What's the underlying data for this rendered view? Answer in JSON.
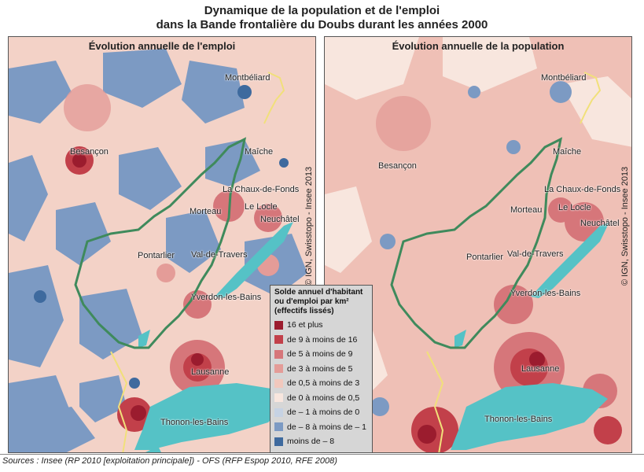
{
  "title_line1": "Dynamique de la population et de l'emploi",
  "title_line2": "dans la Bande frontalière du Doubs durant les années 2000",
  "maps": [
    {
      "title": "Évolution annuelle de l'emploi"
    },
    {
      "title": "Évolution annuelle de la population"
    }
  ],
  "cities": {
    "montbeliard": "Montbéliard",
    "besancon": "Besançon",
    "maiche": "Maîche",
    "chaux_de_fonds": "La Chaux-de-Fonds",
    "le_locle": "Le Locle",
    "morteau": "Morteau",
    "neuchatel": "Neuchâtel",
    "pontarlier": "Pontarlier",
    "val_de_travers": "Val-de-Travers",
    "yverdon": "Yverdon-les-Bains",
    "lausanne": "Lausanne",
    "thonon": "Thonon-les-Bains"
  },
  "credit": "© IGN, Swisstopo - Insee 2013",
  "legend": {
    "title": "Solde annuel d'habitant ou d'emploi par km² (effectifs lissés)",
    "classes": [
      {
        "label": "16 et plus",
        "color": "#9b1c2e"
      },
      {
        "label": "de 9 à moins de 16",
        "color": "#c2404a"
      },
      {
        "label": "de 5 à moins de 9",
        "color": "#d6767a"
      },
      {
        "label": "de 3 à moins de 5",
        "color": "#e49c98"
      },
      {
        "label": "de 0,5 à moins de 3",
        "color": "#f1c8bd"
      },
      {
        "label": "de 0 à moins de 0,5",
        "color": "#f8e6de"
      },
      {
        "label": "de – 1 à moins de 0",
        "color": "#c6d2e3"
      },
      {
        "label": "de – 8 à moins de – 1",
        "color": "#7c9ac3"
      },
      {
        "label": "moins de – 8",
        "color": "#3e6a9e"
      }
    ]
  },
  "colors": {
    "lake": "#55c2c6",
    "border_zone": "#3f8a5c",
    "national_border": "#f1e07a"
  },
  "source": "Sources : Insee (RP 2010 [exploitation principale]) - OFS (RFP Espop 2010, RFE 2008)"
}
